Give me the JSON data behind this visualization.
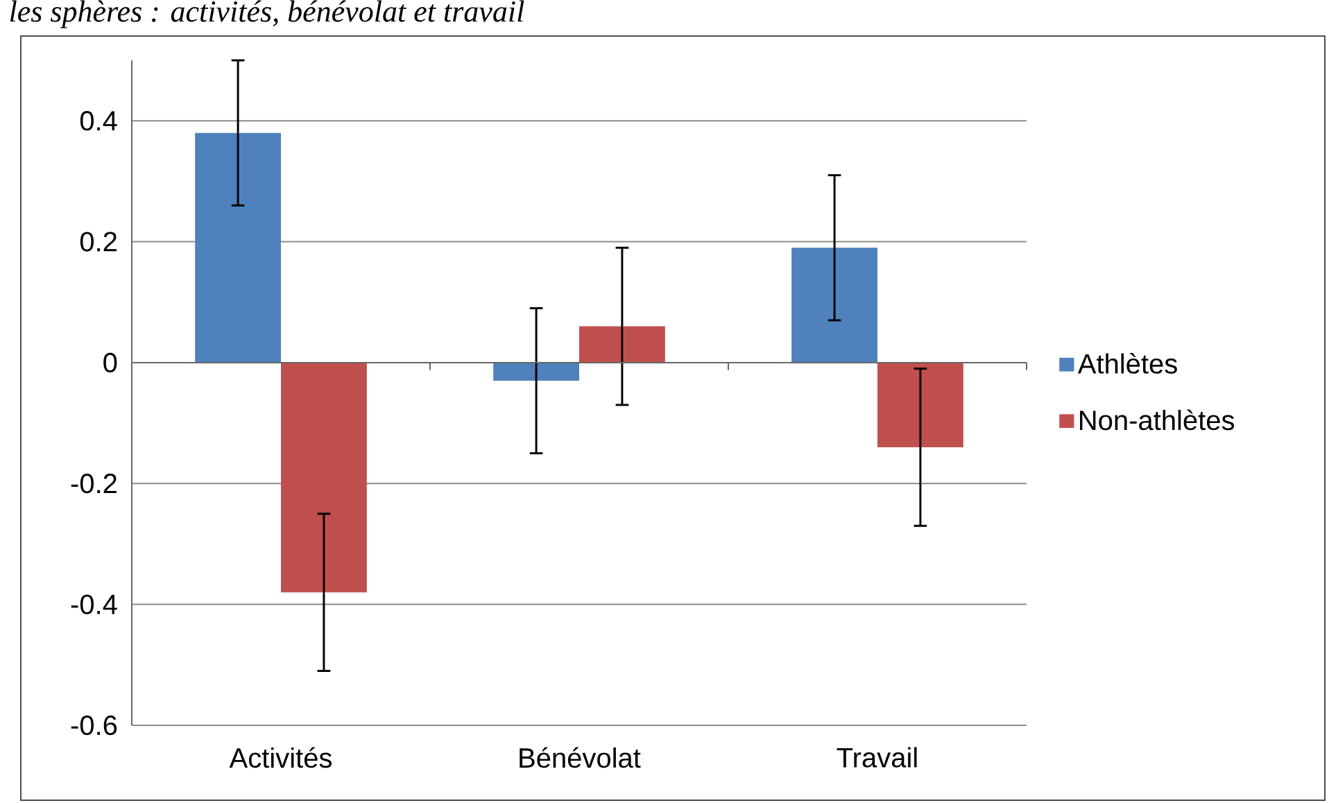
{
  "chart_data": {
    "type": "bar",
    "title": "les sphères : activités, bénévolat et travail",
    "categories": [
      "Activités",
      "Bénévolat",
      "Travail"
    ],
    "series": [
      {
        "name": "Athlètes",
        "color": "#4f81bd",
        "values": [
          0.38,
          -0.03,
          0.19
        ],
        "errors": [
          0.12,
          0.12,
          0.12
        ]
      },
      {
        "name": "Non-athlètes",
        "color": "#c0504d",
        "values": [
          -0.38,
          0.06,
          -0.14
        ],
        "errors": [
          0.13,
          0.13,
          0.13
        ]
      }
    ],
    "ylim": [
      -0.6,
      0.5
    ],
    "yticks": [
      -0.6,
      -0.4,
      -0.2,
      0,
      0.2,
      0.4
    ],
    "grid": "y",
    "legend": "right"
  }
}
